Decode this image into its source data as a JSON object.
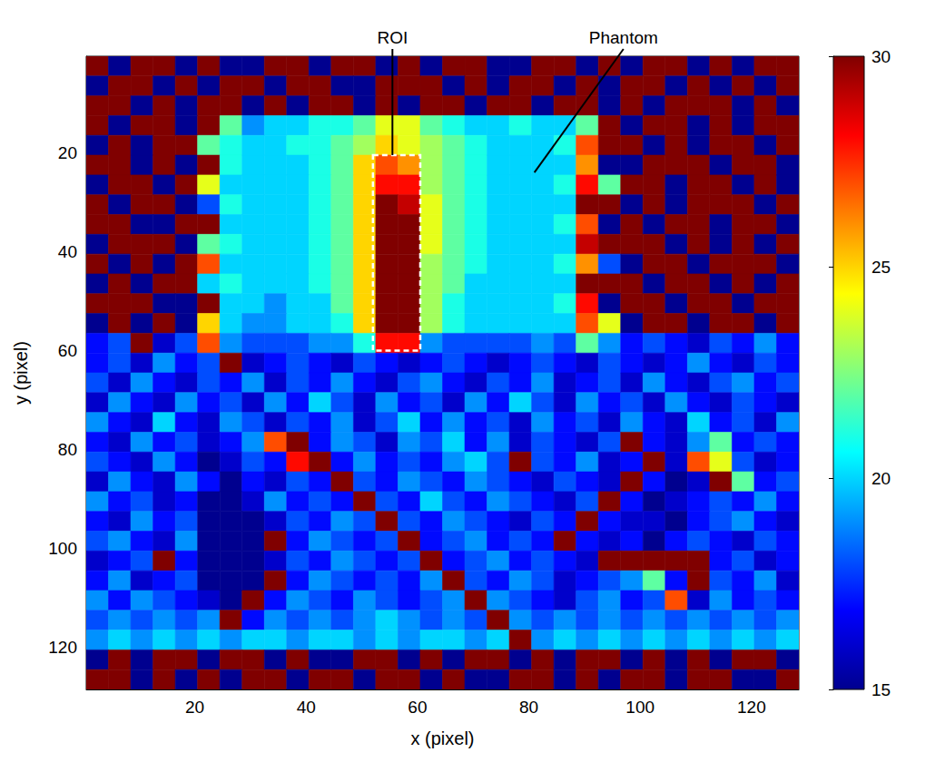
{
  "chart_data": {
    "type": "heatmap",
    "xlabel": "x (pixel)",
    "ylabel": "y (pixel)",
    "x": [
      2.5,
      6.5,
      10.5,
      14.5,
      18.5,
      22.5,
      26.5,
      30.5,
      34.5,
      38.5,
      42.5,
      46.5,
      50.5,
      54.5,
      58.5,
      62.5,
      66.5,
      70.5,
      74.5,
      78.5,
      82.5,
      86.5,
      90.5,
      94.5,
      98.5,
      102.5,
      106.5,
      110.5,
      114.5,
      118.5,
      122.5,
      126.5
    ],
    "y": [
      2.5,
      6.5,
      10.5,
      14.5,
      18.5,
      22.5,
      26.5,
      30.5,
      34.5,
      38.5,
      42.5,
      46.5,
      50.5,
      54.5,
      58.5,
      62.5,
      66.5,
      70.5,
      74.5,
      78.5,
      82.5,
      86.5,
      90.5,
      94.5,
      98.5,
      102.5,
      106.5,
      110.5,
      114.5,
      118.5,
      122.5,
      126.5
    ],
    "z": [
      [
        30,
        15,
        30,
        30,
        15,
        30,
        15,
        15,
        30,
        30,
        15,
        30,
        30,
        15,
        30,
        15,
        30,
        30,
        15,
        15,
        30,
        30,
        15,
        30,
        15,
        30,
        30,
        15,
        30,
        15,
        30,
        30
      ],
      [
        15,
        30,
        30,
        15,
        30,
        15,
        30,
        30,
        15,
        30,
        30,
        15,
        15,
        30,
        30,
        30,
        15,
        30,
        15,
        30,
        30,
        15,
        30,
        15,
        30,
        30,
        15,
        30,
        15,
        30,
        15,
        30
      ],
      [
        30,
        30,
        15,
        30,
        15,
        30,
        30,
        15,
        30,
        15,
        30,
        30,
        15,
        30,
        15,
        30,
        30,
        15,
        30,
        30,
        15,
        30,
        30,
        15,
        30,
        15,
        30,
        30,
        30,
        15,
        30,
        15
      ],
      [
        30,
        15,
        30,
        30,
        15,
        30,
        22,
        19,
        20,
        20,
        21,
        21,
        22,
        24,
        24,
        22,
        21,
        20,
        20,
        21,
        20,
        20,
        22,
        30,
        15,
        30,
        30,
        15,
        30,
        15,
        30,
        30
      ],
      [
        15,
        30,
        15,
        30,
        30,
        22,
        21,
        20,
        20,
        21,
        21,
        22,
        23,
        25,
        24,
        23,
        22,
        21,
        20,
        20,
        20,
        21,
        27,
        30,
        30,
        15,
        30,
        15,
        30,
        30,
        15,
        30
      ],
      [
        30,
        30,
        15,
        30,
        15,
        30,
        21,
        20,
        20,
        20,
        21,
        22,
        25,
        27,
        26,
        23,
        22,
        21,
        20,
        20,
        20,
        20,
        26,
        15,
        15,
        30,
        30,
        30,
        15,
        30,
        30,
        15
      ],
      [
        15,
        30,
        30,
        15,
        30,
        24,
        20,
        20,
        20,
        20,
        21,
        22,
        25,
        28,
        28,
        23,
        22,
        21,
        20,
        20,
        20,
        21,
        28,
        22,
        30,
        30,
        15,
        30,
        30,
        15,
        30,
        15
      ],
      [
        30,
        15,
        30,
        30,
        15,
        18,
        21,
        20,
        20,
        20,
        21,
        22,
        25,
        30,
        29,
        24,
        22,
        21,
        20,
        20,
        20,
        20,
        30,
        30,
        15,
        30,
        15,
        30,
        30,
        30,
        15,
        30
      ],
      [
        30,
        30,
        15,
        15,
        30,
        30,
        20,
        20,
        20,
        20,
        21,
        22,
        25,
        30,
        30,
        24,
        22,
        21,
        20,
        20,
        20,
        21,
        27,
        15,
        30,
        15,
        30,
        30,
        15,
        30,
        30,
        15
      ],
      [
        15,
        30,
        30,
        30,
        15,
        22,
        21,
        20,
        20,
        20,
        21,
        22,
        25,
        30,
        30,
        24,
        22,
        21,
        20,
        20,
        20,
        20,
        29,
        30,
        30,
        30,
        15,
        30,
        15,
        30,
        15,
        30
      ],
      [
        30,
        15,
        30,
        15,
        30,
        27,
        20,
        20,
        20,
        20,
        21,
        22,
        25,
        30,
        30,
        23,
        22,
        21,
        20,
        20,
        20,
        21,
        26,
        18,
        15,
        30,
        30,
        15,
        30,
        30,
        30,
        15
      ],
      [
        15,
        30,
        15,
        30,
        30,
        20,
        21,
        20,
        20,
        20,
        21,
        22,
        25,
        30,
        30,
        23,
        22,
        20,
        20,
        20,
        20,
        20,
        30,
        30,
        30,
        15,
        30,
        30,
        15,
        30,
        15,
        30
      ],
      [
        30,
        30,
        30,
        15,
        15,
        30,
        20,
        20,
        19,
        20,
        20,
        22,
        25,
        30,
        30,
        23,
        21,
        20,
        20,
        20,
        20,
        21,
        28,
        15,
        30,
        30,
        15,
        30,
        30,
        15,
        30,
        30
      ],
      [
        15,
        30,
        15,
        30,
        15,
        25,
        20,
        19,
        19,
        20,
        20,
        21,
        25,
        30,
        30,
        23,
        21,
        20,
        20,
        20,
        20,
        20,
        27,
        24,
        15,
        30,
        30,
        15,
        30,
        30,
        15,
        30
      ],
      [
        17,
        18,
        30,
        16,
        18,
        27,
        19,
        18,
        18,
        18,
        19,
        19,
        21,
        28,
        28,
        19,
        18,
        18,
        18,
        18,
        19,
        18,
        22,
        19,
        17,
        18,
        17,
        16,
        18,
        17,
        19,
        17
      ],
      [
        17,
        18,
        16,
        19,
        17,
        18,
        30,
        16,
        17,
        18,
        17,
        16,
        18,
        17,
        16,
        17,
        18,
        17,
        16,
        17,
        18,
        17,
        16,
        18,
        17,
        16,
        17,
        19,
        17,
        16,
        18,
        17
      ],
      [
        18,
        16,
        19,
        17,
        16,
        18,
        17,
        19,
        16,
        18,
        17,
        19,
        17,
        16,
        18,
        19,
        17,
        16,
        18,
        17,
        19,
        16,
        17,
        18,
        16,
        19,
        17,
        16,
        18,
        19,
        17,
        18
      ],
      [
        16,
        19,
        17,
        16,
        19,
        17,
        18,
        16,
        19,
        17,
        20,
        18,
        16,
        19,
        17,
        18,
        16,
        19,
        17,
        20,
        18,
        16,
        19,
        17,
        18,
        16,
        19,
        17,
        16,
        18,
        17,
        16
      ],
      [
        19,
        17,
        16,
        20,
        17,
        16,
        19,
        18,
        16,
        18,
        17,
        19,
        16,
        18,
        20,
        17,
        19,
        17,
        18,
        16,
        19,
        17,
        18,
        16,
        19,
        17,
        16,
        20,
        17,
        18,
        16,
        19
      ],
      [
        17,
        16,
        19,
        17,
        18,
        16,
        17,
        19,
        27,
        30,
        17,
        19,
        18,
        16,
        19,
        18,
        20,
        17,
        19,
        16,
        18,
        17,
        16,
        18,
        30,
        17,
        16,
        19,
        22,
        17,
        18,
        17
      ],
      [
        18,
        17,
        16,
        19,
        17,
        15,
        16,
        18,
        17,
        28,
        30,
        17,
        19,
        17,
        18,
        17,
        19,
        20,
        18,
        30,
        18,
        17,
        19,
        16,
        17,
        30,
        16,
        27,
        24,
        18,
        16,
        17
      ],
      [
        16,
        19,
        17,
        16,
        19,
        17,
        15,
        17,
        16,
        18,
        17,
        30,
        18,
        17,
        19,
        18,
        17,
        19,
        18,
        17,
        16,
        18,
        17,
        16,
        30,
        17,
        15,
        16,
        30,
        22,
        17,
        18
      ],
      [
        19,
        17,
        18,
        16,
        17,
        15,
        15,
        16,
        19,
        17,
        18,
        17,
        30,
        18,
        17,
        20,
        18,
        17,
        19,
        18,
        17,
        16,
        18,
        30,
        17,
        15,
        16,
        17,
        18,
        17,
        19,
        17
      ],
      [
        17,
        16,
        19,
        17,
        18,
        15,
        15,
        15,
        16,
        18,
        17,
        19,
        18,
        30,
        18,
        17,
        19,
        18,
        17,
        16,
        18,
        17,
        30,
        17,
        16,
        16,
        15,
        17,
        18,
        19,
        17,
        16
      ],
      [
        18,
        19,
        17,
        16,
        19,
        15,
        15,
        15,
        30,
        17,
        19,
        18,
        17,
        18,
        30,
        17,
        18,
        19,
        17,
        18,
        17,
        30,
        17,
        16,
        17,
        15,
        17,
        18,
        17,
        16,
        18,
        17
      ],
      [
        16,
        17,
        18,
        30,
        17,
        15,
        15,
        15,
        16,
        18,
        17,
        19,
        18,
        17,
        18,
        30,
        17,
        18,
        19,
        17,
        18,
        17,
        16,
        30,
        30,
        30,
        30,
        30,
        17,
        18,
        16,
        17
      ],
      [
        17,
        19,
        16,
        17,
        18,
        15,
        15,
        15,
        30,
        17,
        19,
        18,
        17,
        18,
        17,
        19,
        30,
        18,
        17,
        19,
        18,
        16,
        17,
        18,
        19,
        22,
        17,
        30,
        18,
        17,
        19,
        16
      ],
      [
        19,
        17,
        19,
        18,
        17,
        16,
        15,
        30,
        17,
        19,
        18,
        17,
        19,
        18,
        17,
        18,
        19,
        30,
        19,
        18,
        17,
        16,
        18,
        19,
        17,
        18,
        27,
        16,
        19,
        17,
        18,
        17
      ],
      [
        18,
        19,
        18,
        19,
        18,
        19,
        30,
        17,
        19,
        18,
        19,
        18,
        19,
        20,
        19,
        18,
        19,
        18,
        30,
        19,
        18,
        19,
        18,
        19,
        18,
        19,
        18,
        19,
        18,
        19,
        18,
        19
      ],
      [
        19,
        20,
        19,
        20,
        19,
        20,
        19,
        20,
        20,
        19,
        20,
        20,
        19,
        20,
        19,
        20,
        20,
        19,
        20,
        30,
        19,
        20,
        19,
        20,
        19,
        20,
        19,
        20,
        19,
        20,
        19,
        20
      ],
      [
        15,
        30,
        15,
        30,
        30,
        15,
        30,
        30,
        15,
        30,
        15,
        15,
        30,
        30,
        15,
        30,
        15,
        30,
        30,
        15,
        30,
        15,
        30,
        30,
        15,
        30,
        15,
        30,
        15,
        30,
        30,
        15
      ],
      [
        30,
        30,
        15,
        30,
        15,
        30,
        15,
        30,
        30,
        15,
        30,
        30,
        15,
        30,
        30,
        15,
        30,
        15,
        15,
        30,
        30,
        15,
        30,
        15,
        30,
        30,
        15,
        30,
        30,
        15,
        15,
        30
      ]
    ],
    "xlim": [
      0.5,
      128.5
    ],
    "ylim": [
      0.5,
      128.5
    ],
    "xticks": [
      20,
      40,
      60,
      80,
      100,
      120
    ],
    "yticks": [
      20,
      40,
      60,
      80,
      100,
      120
    ],
    "colorbar": {
      "range": [
        15,
        30
      ],
      "ticks": [
        15,
        20,
        25,
        30
      ]
    },
    "roi": {
      "x": [
        52,
        60.5
      ],
      "y": [
        20.5,
        60
      ]
    },
    "annotations": [
      {
        "text": "ROI",
        "x": 55.5,
        "y": 20.5,
        "label_x": 55.5
      },
      {
        "text": "Phantom",
        "x": 81,
        "y": 24,
        "label_x": 97
      }
    ]
  }
}
